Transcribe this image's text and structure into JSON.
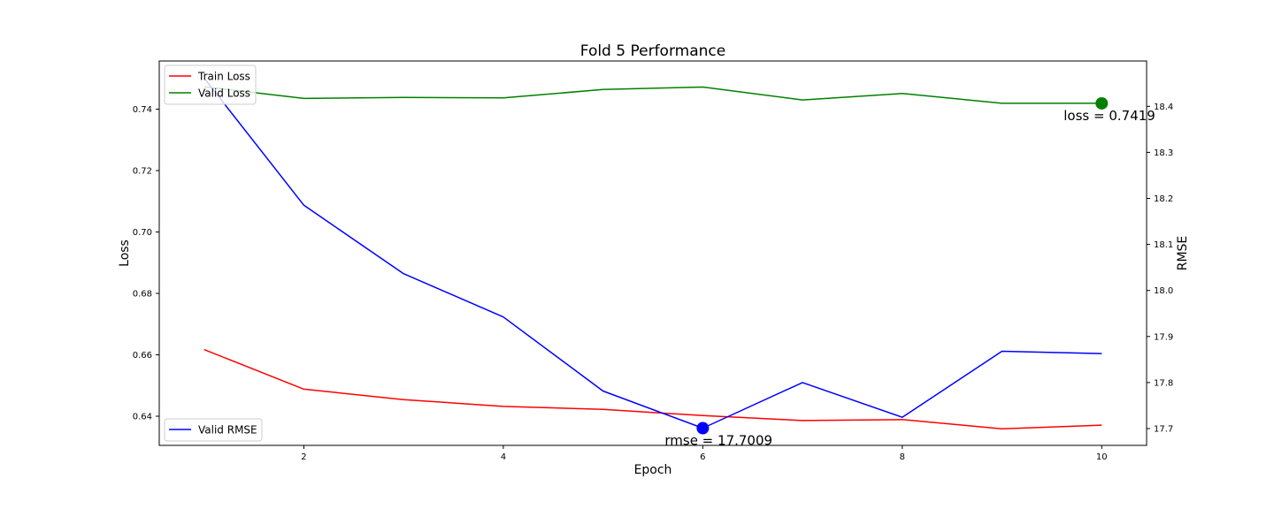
{
  "chart_data": {
    "type": "line",
    "title": "Fold 5 Performance",
    "xlabel": "Epoch",
    "ylabel": "Loss",
    "ylabel_right": "RMSE",
    "x": [
      1,
      2,
      3,
      4,
      5,
      6,
      7,
      8,
      9,
      10
    ],
    "xlim": [
      0.55,
      10.45
    ],
    "xticks": [
      2,
      4,
      6,
      8,
      10
    ],
    "ylim": [
      0.6305,
      0.7557
    ],
    "yticks": [
      0.64,
      0.66,
      0.68,
      0.7,
      0.72,
      0.74
    ],
    "ylim_right": [
      17.6635,
      18.4985
    ],
    "yticks_right": [
      17.7,
      17.8,
      17.9,
      18.0,
      18.1,
      18.2,
      18.3,
      18.4
    ],
    "series": [
      {
        "name": "Train Loss",
        "axis": "left",
        "color": "#ff0000",
        "values": [
          0.6617,
          0.6488,
          0.6454,
          0.6432,
          0.6422,
          0.6402,
          0.6386,
          0.6389,
          0.6359,
          0.6371
        ]
      },
      {
        "name": "Valid Loss",
        "axis": "left",
        "color": "#008000",
        "values": [
          0.7473,
          0.7435,
          0.7438,
          0.7437,
          0.7464,
          0.7472,
          0.743,
          0.7451,
          0.7419,
          0.7419
        ]
      },
      {
        "name": "Valid RMSE",
        "axis": "right",
        "color": "#0000ff",
        "values": [
          18.4615,
          18.185,
          18.0365,
          17.9425,
          17.7815,
          17.7009,
          17.8,
          17.7245,
          17.868,
          17.863
        ]
      }
    ],
    "legend_left": {
      "position": "upper left",
      "entries": [
        "Train Loss",
        "Valid Loss"
      ]
    },
    "legend_right": {
      "position": "lower left",
      "entries": [
        "Valid RMSE"
      ]
    },
    "annotations": [
      {
        "text": "loss = 0.7419",
        "x": 10,
        "y": 0.7419,
        "axis": "left",
        "marker_color": "#008000"
      },
      {
        "text": "rmse = 17.7009",
        "x": 6,
        "y": 17.7009,
        "axis": "right",
        "marker_color": "#0000ff"
      }
    ],
    "grid": false
  }
}
